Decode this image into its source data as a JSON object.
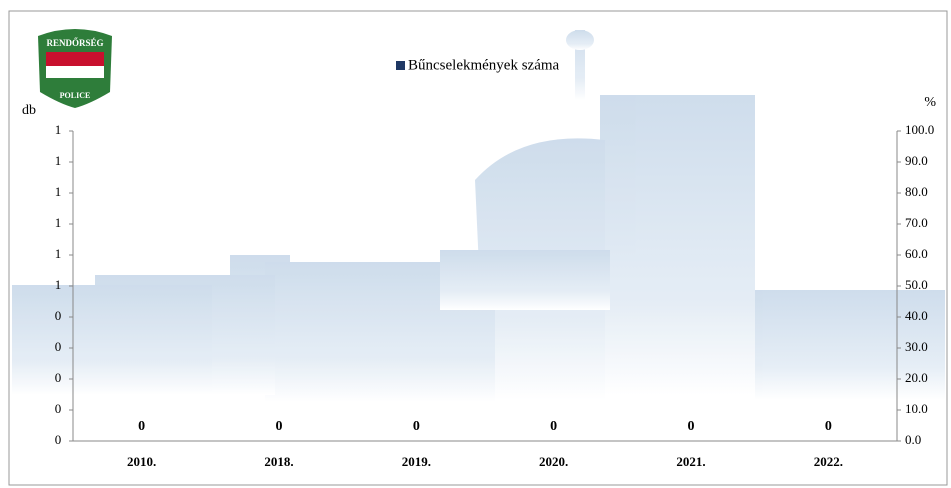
{
  "logo": {
    "top": "RENDŐRSÉG",
    "bottom": "POLICE"
  },
  "chart_data": {
    "type": "bar",
    "y_label": "db",
    "y2_label": "%",
    "categories": [
      "2010.",
      "2018.",
      "2019.",
      "2020.",
      "2021.",
      "2022."
    ],
    "series": [
      {
        "name": "Bűncselekmények száma",
        "color": "#1f3864",
        "values": [
          0,
          0,
          0,
          0,
          0,
          0
        ],
        "value_labels": [
          "0",
          "0",
          "0",
          "0",
          "0",
          "0"
        ]
      }
    ],
    "ylim": [
      0,
      1
    ],
    "yticks": [
      {
        "value": 0,
        "label": "0"
      },
      {
        "value": 0.1,
        "label": "0"
      },
      {
        "value": 0.2,
        "label": "0"
      },
      {
        "value": 0.3,
        "label": "0"
      },
      {
        "value": 0.4,
        "label": "0"
      },
      {
        "value": 0.5,
        "label": "1"
      },
      {
        "value": 0.6,
        "label": "1"
      },
      {
        "value": 0.7,
        "label": "1"
      },
      {
        "value": 0.8,
        "label": "1"
      },
      {
        "value": 0.9,
        "label": "1"
      },
      {
        "value": 1,
        "label": "1"
      }
    ],
    "y2lim": [
      0,
      100
    ],
    "y2ticks": [
      {
        "value": 0,
        "label": "0.0"
      },
      {
        "value": 10,
        "label": "10.0"
      },
      {
        "value": 20,
        "label": "20.0"
      },
      {
        "value": 30,
        "label": "30.0"
      },
      {
        "value": 40,
        "label": "40.0"
      },
      {
        "value": 50,
        "label": "50.0"
      },
      {
        "value": 60,
        "label": "60.0"
      },
      {
        "value": 70,
        "label": "70.0"
      },
      {
        "value": 80,
        "label": "80.0"
      },
      {
        "value": 90,
        "label": "90.0"
      },
      {
        "value": 100,
        "label": "100.0"
      }
    ],
    "legend": "top"
  }
}
